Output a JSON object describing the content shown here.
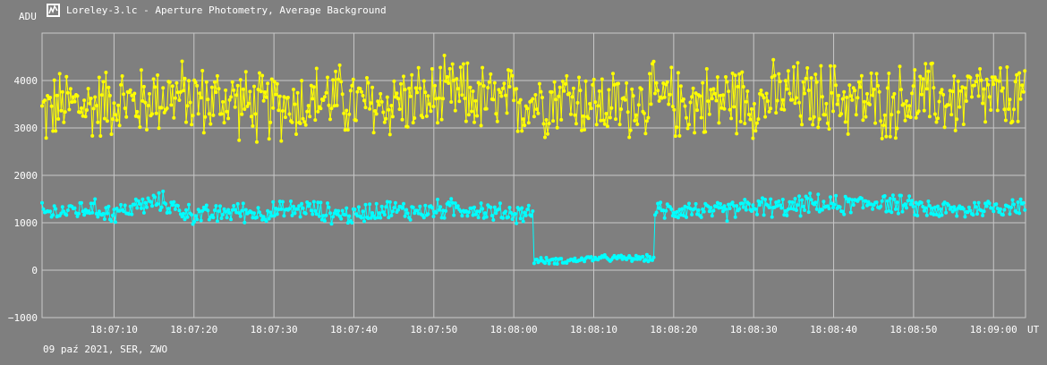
{
  "window": {
    "title": "Loreley-3.lc - Aperture Photometry, Average Background",
    "icon": "graph-icon"
  },
  "footer": {
    "text": "09 paź 2021, SER, ZWO"
  },
  "colors": {
    "background": "#7f7f7f",
    "grid": "#c8c8c8",
    "text": "#ffffff",
    "series_aperture": "#ffff00",
    "series_background": "#00ffff"
  },
  "chart_data": {
    "type": "line",
    "ylabel": "ADU",
    "xlabel": "UT",
    "grid": true,
    "xlim": [
      "18:07:01",
      "18:09:04"
    ],
    "ylim": [
      -1000,
      5000
    ],
    "y_ticks": [
      "4000",
      "3000",
      "2000",
      "1000",
      "0",
      "−1000"
    ],
    "x_ticks": [
      "18:07:10",
      "18:07:20",
      "18:07:30",
      "18:07:40",
      "18:07:50",
      "18:08:00",
      "18:08:10",
      "18:08:20",
      "18:08:30",
      "18:08:40",
      "18:08:50",
      "18:09:00"
    ],
    "x_tick_seconds": [
      10,
      20,
      30,
      40,
      50,
      60,
      70,
      80,
      90,
      100,
      110,
      120
    ],
    "series": [
      {
        "color": "#ffff00",
        "x": [
          "18:07:01",
          "18:07:04",
          "18:07:07",
          "18:07:10",
          "18:07:13",
          "18:07:16",
          "18:07:19",
          "18:07:22",
          "18:07:25",
          "18:07:28",
          "18:07:31",
          "18:07:34",
          "18:07:37",
          "18:07:40",
          "18:07:43",
          "18:07:46",
          "18:07:49",
          "18:07:52",
          "18:07:55",
          "18:07:58",
          "18:08:01",
          "18:08:04",
          "18:08:07",
          "18:08:10",
          "18:08:13",
          "18:08:16",
          "18:08:19",
          "18:08:22",
          "18:08:25",
          "18:08:28",
          "18:08:31",
          "18:08:34",
          "18:08:37",
          "18:08:40",
          "18:08:43",
          "18:08:46",
          "18:08:49",
          "18:08:52",
          "18:08:55",
          "18:08:58",
          "18:09:01",
          "18:09:04"
        ],
        "values": [
          3300,
          3500,
          3450,
          3600,
          3500,
          3700,
          3650,
          3550,
          3600,
          3400,
          3500,
          3550,
          3650,
          3500,
          3450,
          3600,
          3550,
          3700,
          3650,
          3500,
          3550,
          3600,
          3700,
          3500,
          3450,
          3600,
          3550,
          3500,
          3600,
          3650,
          3550,
          3700,
          3600,
          3650,
          3550,
          3500,
          3600,
          3650,
          3550,
          3700,
          3600,
          3650
        ],
        "spread": 900
      },
      {
        "color": "#00ffff",
        "x": [
          "18:07:01",
          "18:07:04",
          "18:07:07",
          "18:07:10",
          "18:07:13",
          "18:07:16",
          "18:07:19",
          "18:07:22",
          "18:07:25",
          "18:07:28",
          "18:07:31",
          "18:07:34",
          "18:07:37",
          "18:07:40",
          "18:07:43",
          "18:07:46",
          "18:07:49",
          "18:07:52",
          "18:07:55",
          "18:07:58",
          "18:08:01",
          "18:08:04",
          "18:08:07",
          "18:08:10",
          "18:08:13",
          "18:08:16",
          "18:08:19",
          "18:08:22",
          "18:08:25",
          "18:08:28",
          "18:08:31",
          "18:08:34",
          "18:08:37",
          "18:08:40",
          "18:08:43",
          "18:08:46",
          "18:08:49",
          "18:08:52",
          "18:08:55",
          "18:08:58",
          "18:09:01",
          "18:09:04"
        ],
        "values": [
          1200,
          1250,
          1300,
          1200,
          1350,
          1450,
          1200,
          1150,
          1250,
          1200,
          1250,
          1300,
          1200,
          1150,
          1300,
          1250,
          1250,
          1300,
          1300,
          1200,
          1200,
          200,
          200,
          250,
          250,
          250,
          1250,
          1300,
          1200,
          1300,
          1350,
          1300,
          1400,
          1350,
          1400,
          1450,
          1350,
          1300,
          1250,
          1300,
          1350,
          1350
        ],
        "spread": 250
      }
    ]
  }
}
